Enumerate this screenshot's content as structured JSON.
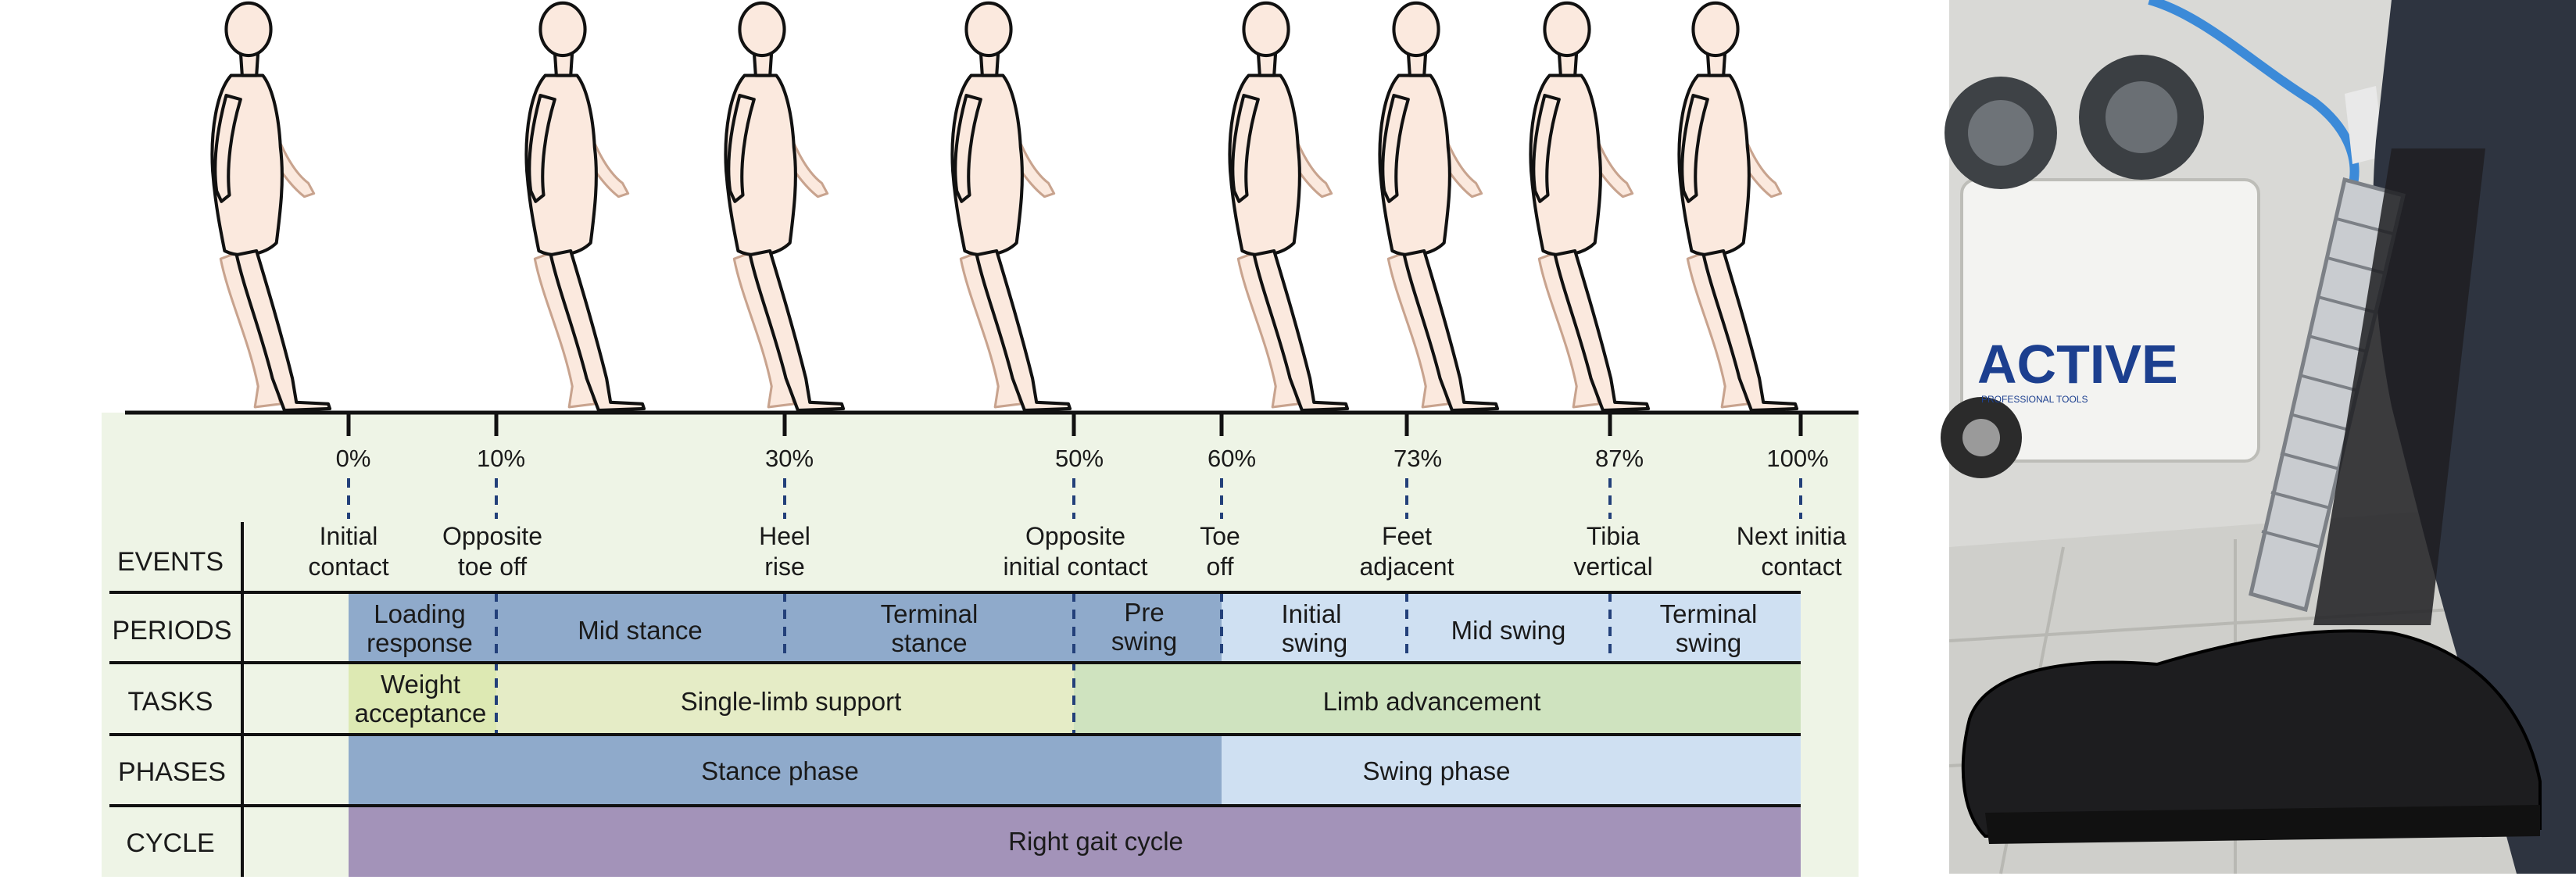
{
  "percent_labels": [
    "0%",
    "10%",
    "30%",
    "50%",
    "60%",
    "73%",
    "87%",
    "100%"
  ],
  "events": {
    "row_label": "EVENTS",
    "items": [
      [
        "Initial",
        "contact"
      ],
      [
        "Opposite",
        "toe off"
      ],
      [
        "Heel",
        "rise"
      ],
      [
        "Opposite",
        "initial contact"
      ],
      [
        "Toe",
        "off"
      ],
      [
        "Feet",
        "adjacent"
      ],
      [
        "Tibia",
        "vertical"
      ],
      [
        "Next initia",
        "contact"
      ]
    ]
  },
  "periods": {
    "row_label": "PERIODS",
    "cells": [
      [
        "Loading",
        "response"
      ],
      [
        "Mid stance"
      ],
      [
        "Terminal",
        "stance"
      ],
      [
        "Pre",
        "swing"
      ],
      [
        "Initial",
        "swing"
      ],
      [
        "Mid swing"
      ],
      [
        "Terminal",
        "swing"
      ]
    ]
  },
  "tasks": {
    "row_label": "TASKS",
    "cells": [
      [
        "Weight",
        "acceptance"
      ],
      [
        "Single-limb support"
      ],
      [
        "Limb advancement"
      ]
    ]
  },
  "phases": {
    "row_label": "PHASES",
    "cells": [
      [
        "Stance phase"
      ],
      [
        "Swing phase"
      ]
    ]
  },
  "cycle": {
    "row_label": "CYCLE",
    "cells": [
      [
        "Right gait cycle"
      ]
    ]
  },
  "photo": {
    "brand_text": "ACTIVE",
    "brand_subtext": "PROFESSIONAL TOOLS"
  },
  "colors": {
    "panel_bg": "#eef4e6",
    "stance_blue": "#8faacb",
    "swing_blue": "#cfe0f2",
    "task_light": "#e5ecc6",
    "task_weight": "#dde9b3",
    "task_limb": "#cfe3bf",
    "cycle_purple": "#a393b9",
    "skin": "#fbe9de"
  },
  "icons": [
    "walking-figure-icon"
  ]
}
